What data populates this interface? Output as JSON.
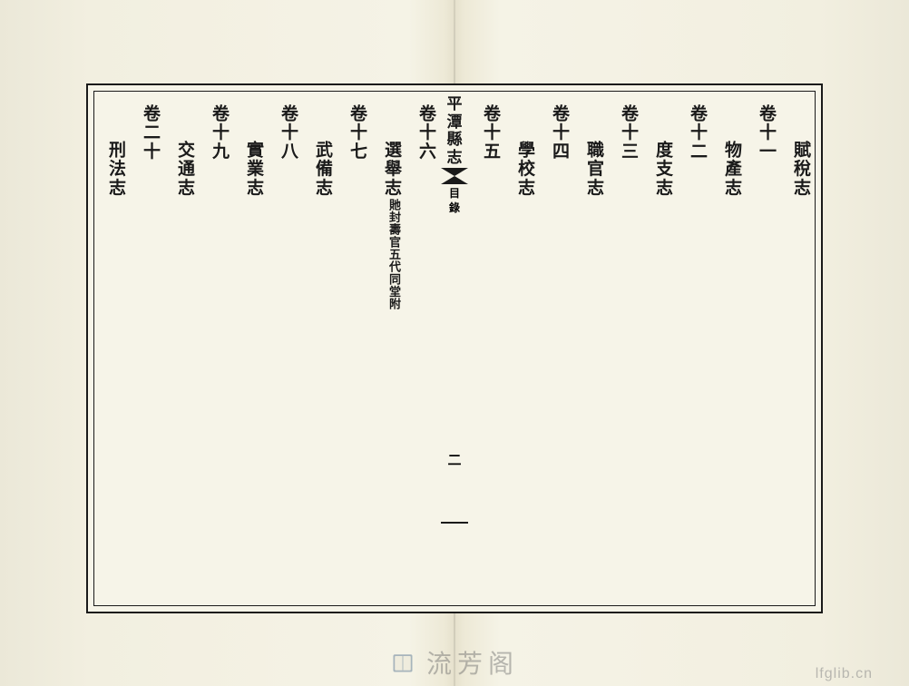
{
  "spine": {
    "title_chars": [
      "平",
      "潭",
      "縣",
      "志"
    ],
    "subtitle_chars": [
      "目",
      "錄"
    ],
    "page_number": "二"
  },
  "right_page": {
    "columns": [
      {
        "type": "sub",
        "text": "賦稅志"
      },
      {
        "type": "heading",
        "text": "卷十一"
      },
      {
        "type": "sub",
        "text": "物產志"
      },
      {
        "type": "heading",
        "text": "卷十二"
      },
      {
        "type": "sub",
        "text": "度支志"
      },
      {
        "type": "heading",
        "text": "卷十三"
      },
      {
        "type": "sub",
        "text": "職官志"
      },
      {
        "type": "heading",
        "text": "卷十四"
      },
      {
        "type": "sub",
        "text": "學校志"
      },
      {
        "type": "heading",
        "text": "卷十五"
      }
    ]
  },
  "left_page": {
    "columns": [
      {
        "type": "heading",
        "text": "卷十六"
      },
      {
        "type": "sub",
        "text": "選舉志",
        "annotation": "貤封壽官五代同堂附"
      },
      {
        "type": "heading",
        "text": "卷十七"
      },
      {
        "type": "sub",
        "text": "武備志"
      },
      {
        "type": "heading",
        "text": "卷十八"
      },
      {
        "type": "sub",
        "text": "實業志"
      },
      {
        "type": "heading",
        "text": "卷十九"
      },
      {
        "type": "sub",
        "text": "交通志"
      },
      {
        "type": "heading",
        "text": "卷二十"
      },
      {
        "type": "sub",
        "text": "刑法志"
      }
    ]
  },
  "watermark": {
    "text": "流芳阁",
    "url": "lfglib.cn"
  },
  "colors": {
    "ink": "#1a1a1a",
    "paper": "#f5f3e8",
    "frame": "#1a1a1a"
  }
}
